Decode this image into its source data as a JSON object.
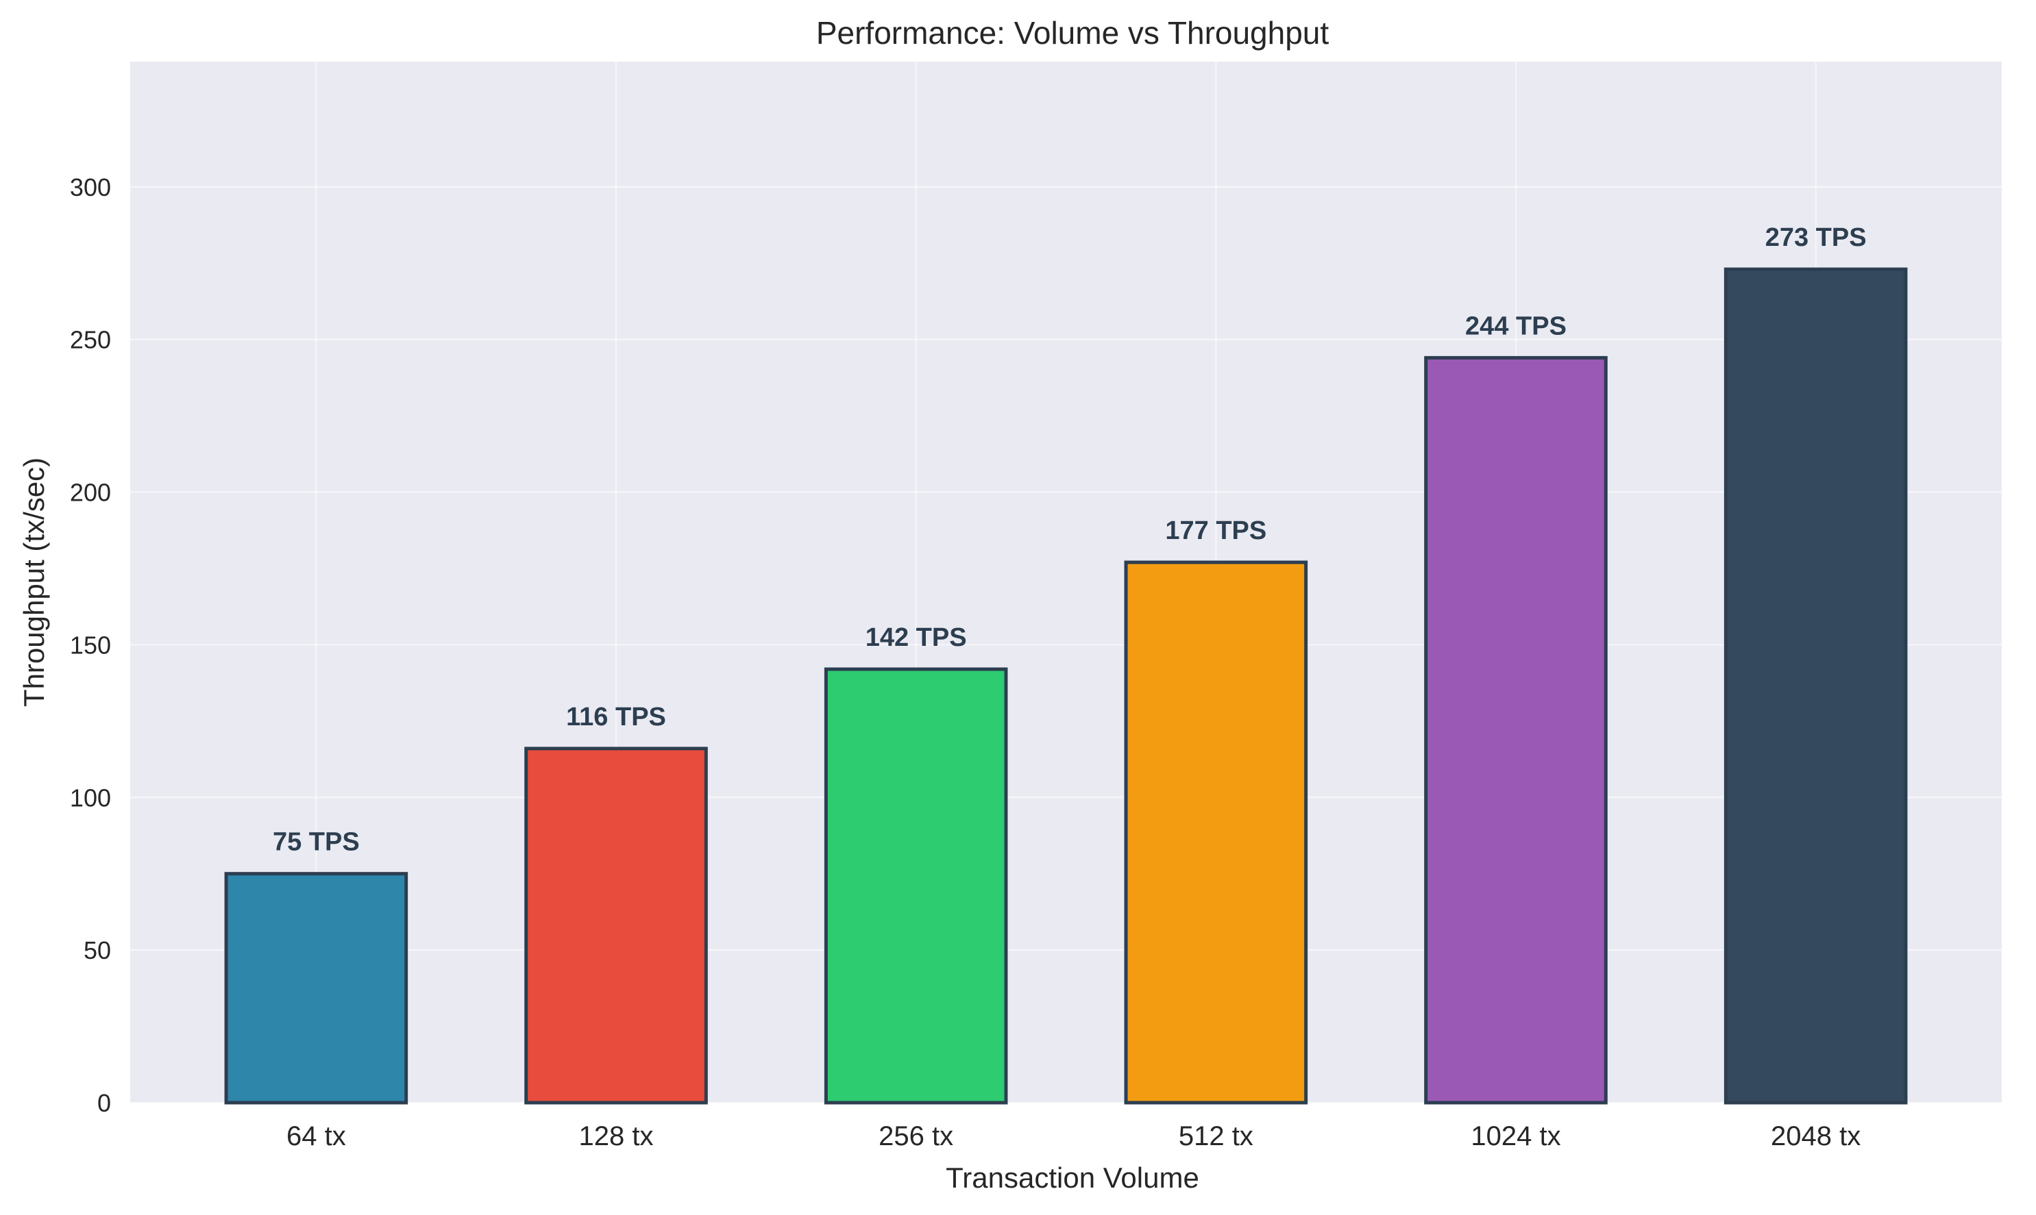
{
  "chart_data": {
    "type": "bar",
    "title": "Performance: Volume vs Throughput",
    "xlabel": "Transaction Volume",
    "ylabel": "Throughput (tx/sec)",
    "categories": [
      "64 tx",
      "128 tx",
      "256 tx",
      "512 tx",
      "1024 tx",
      "2048 tx"
    ],
    "values": [
      75,
      116,
      142,
      177,
      244,
      273
    ],
    "data_labels": [
      "75 TPS",
      "116 TPS",
      "142 TPS",
      "177 TPS",
      "244 TPS",
      "273 TPS"
    ],
    "colors": [
      "#2e86ab",
      "#e74c3c",
      "#2ecc71",
      "#f39c12",
      "#9b59b6",
      "#34495e"
    ],
    "edge_color": "#2c3e50",
    "background": "#eaeaf2",
    "ylim": [
      0,
      341
    ],
    "yticks": [
      0,
      50,
      100,
      150,
      200,
      250,
      300
    ],
    "grid": true,
    "legend": "none"
  }
}
